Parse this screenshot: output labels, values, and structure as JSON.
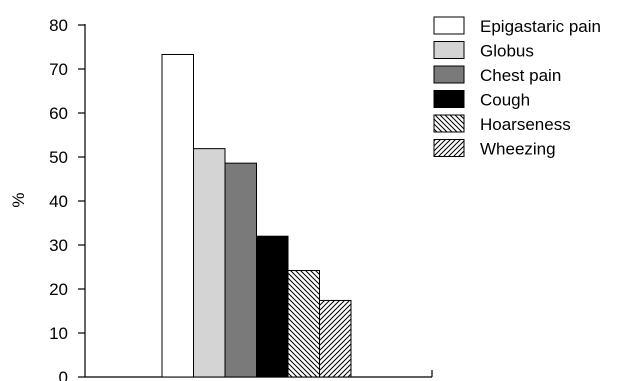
{
  "chart_data": {
    "type": "bar",
    "title": "",
    "xlabel": "",
    "ylabel": "%",
    "ylim": [
      0,
      80
    ],
    "yticks": [
      0,
      10,
      20,
      30,
      40,
      50,
      60,
      70,
      80
    ],
    "grid": false,
    "legend_position": "top-right",
    "categories": [
      "Epigastaric pain",
      "Globus",
      "Chest pain",
      "Cough",
      "Hoarseness",
      "Wheezing"
    ],
    "values": [
      73.3,
      51.9,
      48.6,
      32.0,
      24.2,
      17.4
    ],
    "fills": [
      {
        "pattern": "solid",
        "color": "#ffffff"
      },
      {
        "pattern": "solid",
        "color": "#d4d4d4"
      },
      {
        "pattern": "solid",
        "color": "#7a7a7a"
      },
      {
        "pattern": "solid",
        "color": "#000000"
      },
      {
        "pattern": "backslash-hatch",
        "color": "#000000"
      },
      {
        "pattern": "slash-hatch",
        "color": "#000000"
      }
    ]
  }
}
